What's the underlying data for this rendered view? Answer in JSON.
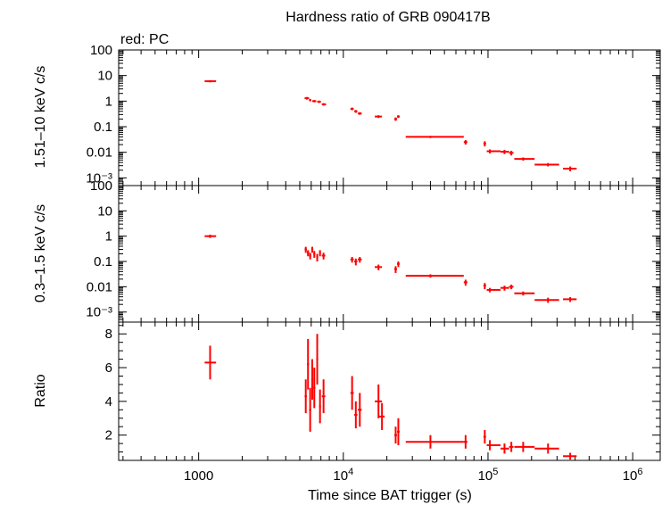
{
  "title": "Hardness ratio of GRB 090417B",
  "annotation": "red: PC",
  "xlabel": "Time since BAT trigger (s)",
  "colors": {
    "data": "#ff0000",
    "axes": "#000000"
  },
  "chart_data": [
    {
      "type": "scatter",
      "panel": "top",
      "ylabel": "1.51–10 keV c/s",
      "yscale": "log",
      "xscale": "log",
      "xlim": [
        280,
        1550000
      ],
      "ylim": [
        0.0005,
        100
      ],
      "yticks": [
        {
          "v": 100,
          "label": "100"
        },
        {
          "v": 10,
          "label": "10"
        },
        {
          "v": 1,
          "label": "1"
        },
        {
          "v": 0.1,
          "label": "0.1"
        },
        {
          "v": 0.01,
          "label": "0.01"
        },
        {
          "v": 0.001,
          "label": "10⁻³"
        }
      ],
      "series": [
        {
          "points": [
            [
              1200,
              6.0,
              1100,
              1320,
              0.6
            ],
            [
              5600,
              1.3,
              5400,
              5800,
              0.15
            ],
            [
              5900,
              1.1,
              5800,
              6000,
              0.12
            ],
            [
              6300,
              1.0,
              6100,
              6500,
              0.1
            ],
            [
              6800,
              0.95,
              6600,
              7000,
              0.1
            ],
            [
              7300,
              0.75,
              7100,
              7600,
              0.08
            ],
            [
              11500,
              0.5,
              11200,
              11800,
              0.06
            ],
            [
              12200,
              0.4,
              11900,
              12500,
              0.05
            ],
            [
              13000,
              0.33,
              12600,
              13400,
              0.04
            ],
            [
              17500,
              0.25,
              16500,
              18500,
              0.03
            ],
            [
              23000,
              0.2,
              22500,
              23500,
              0.03
            ],
            [
              24000,
              0.25,
              23500,
              24500,
              0.03
            ],
            [
              40000,
              0.04,
              27000,
              68000,
              0.004
            ],
            [
              70000,
              0.025,
              68000,
              72000,
              0.005
            ],
            [
              95000,
              0.022,
              93000,
              97000,
              0.005
            ],
            [
              103000,
              0.011,
              98000,
              122000,
              0.002
            ],
            [
              130000,
              0.0105,
              122000,
              140000,
              0.002
            ],
            [
              145000,
              0.0095,
              140000,
              150000,
              0.002
            ],
            [
              175000,
              0.0055,
              152000,
              210000,
              0.0008
            ],
            [
              260000,
              0.0033,
              210000,
              310000,
              0.0005
            ],
            [
              370000,
              0.0023,
              330000,
              410000,
              0.0005
            ]
          ]
        }
      ]
    },
    {
      "type": "scatter",
      "panel": "middle",
      "ylabel": "0.3–1.5 keV c/s",
      "yscale": "log",
      "xscale": "log",
      "xlim": [
        280,
        1550000
      ],
      "ylim": [
        0.0004,
        100
      ],
      "yticks": [
        {
          "v": 100,
          "label": "100"
        },
        {
          "v": 10,
          "label": "10"
        },
        {
          "v": 1,
          "label": "1"
        },
        {
          "v": 0.1,
          "label": "0.1"
        },
        {
          "v": 0.01,
          "label": "0.01"
        },
        {
          "v": 0.001,
          "label": "10⁻³"
        }
      ],
      "series": [
        {
          "points": [
            [
              1200,
              1.0,
              1100,
              1320,
              0.15
            ],
            [
              5500,
              0.3,
              5400,
              5600,
              0.08
            ],
            [
              5700,
              0.22,
              5600,
              5800,
              0.06
            ],
            [
              5900,
              0.17,
              5800,
              6000,
              0.05
            ],
            [
              6100,
              0.3,
              6000,
              6200,
              0.08
            ],
            [
              6300,
              0.2,
              6200,
              6400,
              0.06
            ],
            [
              6600,
              0.15,
              6500,
              6700,
              0.05
            ],
            [
              6900,
              0.22,
              6800,
              7000,
              0.06
            ],
            [
              7300,
              0.17,
              7100,
              7500,
              0.05
            ],
            [
              11500,
              0.12,
              11200,
              11800,
              0.03
            ],
            [
              12200,
              0.1,
              11900,
              12500,
              0.03
            ],
            [
              13000,
              0.12,
              12600,
              13400,
              0.03
            ],
            [
              17500,
              0.06,
              16500,
              18500,
              0.015
            ],
            [
              23000,
              0.05,
              22500,
              23500,
              0.015
            ],
            [
              24000,
              0.08,
              23500,
              24500,
              0.02
            ],
            [
              40000,
              0.027,
              27000,
              68000,
              0.004
            ],
            [
              70000,
              0.015,
              68000,
              72000,
              0.004
            ],
            [
              95000,
              0.011,
              93000,
              97000,
              0.003
            ],
            [
              103000,
              0.0075,
              98000,
              122000,
              0.0015
            ],
            [
              130000,
              0.009,
              122000,
              140000,
              0.002
            ],
            [
              145000,
              0.01,
              140000,
              150000,
              0.002
            ],
            [
              175000,
              0.0055,
              152000,
              210000,
              0.001
            ],
            [
              260000,
              0.003,
              210000,
              310000,
              0.0007
            ],
            [
              370000,
              0.0032,
              330000,
              410000,
              0.0007
            ]
          ]
        }
      ]
    },
    {
      "type": "scatter",
      "panel": "bottom",
      "ylabel": "Ratio",
      "yscale": "linear",
      "xscale": "log",
      "xlim": [
        280,
        1550000
      ],
      "ylim": [
        0.5,
        8.7
      ],
      "yticks": [
        {
          "v": 2,
          "label": "2"
        },
        {
          "v": 4,
          "label": "4"
        },
        {
          "v": 6,
          "label": "6"
        },
        {
          "v": 8,
          "label": "8"
        }
      ],
      "series": [
        {
          "points": [
            [
              1200,
              6.3,
              1100,
              1320,
              1.0
            ],
            [
              5500,
              4.3,
              5400,
              5600,
              1.0
            ],
            [
              5700,
              6.2,
              5600,
              5800,
              1.5
            ],
            [
              5900,
              3.5,
              5800,
              6000,
              1.3
            ],
            [
              6100,
              5.3,
              6000,
              6200,
              1.2
            ],
            [
              6300,
              4.8,
              6200,
              6400,
              1.2
            ],
            [
              6600,
              6.5,
              6500,
              6700,
              1.5
            ],
            [
              6900,
              3.7,
              6800,
              7000,
              1.0
            ],
            [
              7300,
              4.3,
              7100,
              7500,
              1.0
            ],
            [
              11500,
              4.5,
              11200,
              11800,
              1.0
            ],
            [
              12200,
              3.2,
              11900,
              12500,
              0.8
            ],
            [
              13000,
              3.5,
              12600,
              13400,
              1.0
            ],
            [
              17500,
              4.0,
              16500,
              18500,
              1.0
            ],
            [
              18500,
              3.1,
              17700,
              19300,
              0.8
            ],
            [
              23000,
              2.0,
              22500,
              23500,
              0.5
            ],
            [
              24000,
              2.2,
              23500,
              24500,
              0.8
            ],
            [
              40000,
              1.6,
              27000,
              68000,
              0.4
            ],
            [
              70000,
              1.6,
              68000,
              72000,
              0.4
            ],
            [
              95000,
              1.9,
              93000,
              97000,
              0.4
            ],
            [
              103000,
              1.4,
              98000,
              122000,
              0.3
            ],
            [
              130000,
              1.2,
              122000,
              140000,
              0.3
            ],
            [
              145000,
              1.3,
              140000,
              150000,
              0.3
            ],
            [
              175000,
              1.3,
              152000,
              210000,
              0.3
            ],
            [
              260000,
              1.2,
              210000,
              310000,
              0.3
            ],
            [
              370000,
              0.75,
              330000,
              410000,
              0.2
            ]
          ]
        }
      ]
    }
  ]
}
